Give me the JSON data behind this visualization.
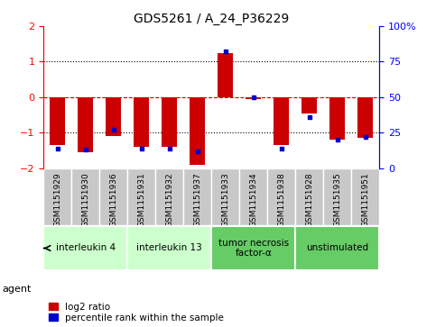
{
  "title": "GDS5261 / A_24_P36229",
  "samples": [
    "GSM1151929",
    "GSM1151930",
    "GSM1151936",
    "GSM1151931",
    "GSM1151932",
    "GSM1151937",
    "GSM1151933",
    "GSM1151934",
    "GSM1151938",
    "GSM1151928",
    "GSM1151935",
    "GSM1151951"
  ],
  "log2_ratio": [
    -1.35,
    -1.55,
    -1.1,
    -1.4,
    -1.4,
    -1.9,
    1.25,
    -0.05,
    -1.35,
    -0.45,
    -1.2,
    -1.15
  ],
  "percentile_rank": [
    14,
    13,
    27,
    14,
    14,
    12,
    82,
    50,
    14,
    36,
    20,
    22
  ],
  "ylim": [
    -2,
    2
  ],
  "yticks_left": [
    -2,
    -1,
    0,
    1,
    2
  ],
  "yticks_right": [
    0,
    25,
    50,
    75,
    100
  ],
  "bar_color": "#cc0000",
  "dot_color": "#0000cc",
  "hline0_color": "#cc0000",
  "dotted_hlines": [
    -1,
    1
  ],
  "groups": [
    {
      "label": "interleukin 4",
      "start": 0,
      "end": 3,
      "color": "#ccffcc"
    },
    {
      "label": "interleukin 13",
      "start": 3,
      "end": 6,
      "color": "#ccffcc"
    },
    {
      "label": "tumor necrosis\nfactor-α",
      "start": 6,
      "end": 9,
      "color": "#66cc66"
    },
    {
      "label": "unstimulated",
      "start": 9,
      "end": 12,
      "color": "#66cc66"
    }
  ],
  "agent_label": "agent",
  "legend_log2": "log2 ratio",
  "legend_pct": "percentile rank within the sample",
  "bar_width": 0.55,
  "bg_color": "#ffffff",
  "sample_box_color": "#c8c8c8",
  "tick_label_fontsize": 6.5,
  "title_fontsize": 10
}
